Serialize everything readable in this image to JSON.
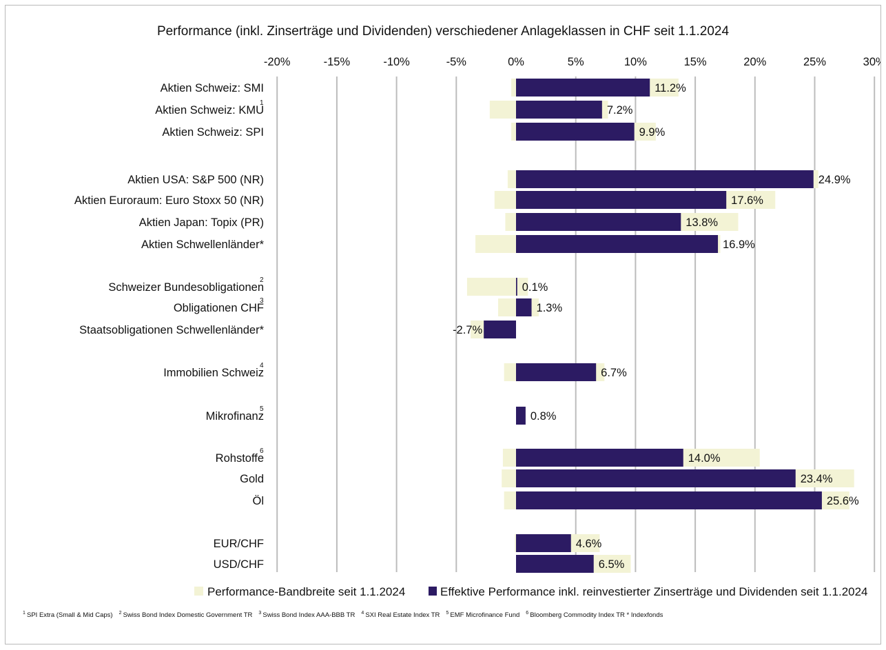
{
  "chart_data": {
    "type": "bar",
    "orientation": "horizontal",
    "title": "Performance (inkl. Zinserträge und Dividenden) verschiedener Anlageklassen in CHF seit 1.1.2024",
    "x_ticks": [
      "-20%",
      "-15%",
      "-10%",
      "-5%",
      "0%",
      "5%",
      "10%",
      "15%",
      "20%",
      "25%",
      "30%"
    ],
    "xlim": [
      -20,
      30
    ],
    "grid": true,
    "legend_position": "bottom",
    "colors": {
      "range": "#f3f3d5",
      "effective": "#2c1b63",
      "grid": "#bcbcbc"
    },
    "series": [
      {
        "name": "Performance-Bandbreite seit 1.1.2024",
        "kind": "range"
      },
      {
        "name": "Effektive Performance inkl. reinvestierter Zinserträge und Dividenden seit 1.1.2024",
        "kind": "value"
      }
    ],
    "categories": [
      {
        "label": "Aktien Schweiz: SMI",
        "sup": "",
        "value": 11.2,
        "label_text": "11.2%",
        "range": [
          -0.4,
          13.6
        ]
      },
      {
        "label": "Aktien Schweiz: KMU",
        "sup": "1",
        "value": 7.2,
        "label_text": "7.2%",
        "range": [
          -2.2,
          7.7
        ]
      },
      {
        "label": "Aktien Schweiz: SPI",
        "sup": "",
        "value": 9.9,
        "label_text": "9.9%",
        "range": [
          -0.4,
          11.7
        ]
      },
      {
        "label": "Aktien USA: S&P 500 (NR)",
        "sup": "",
        "value": 24.9,
        "label_text": "24.9%",
        "range": [
          -0.7,
          25.3
        ]
      },
      {
        "label": "Aktien Euroraum: Euro Stoxx 50 (NR)",
        "sup": "",
        "value": 17.6,
        "label_text": "17.6%",
        "range": [
          -1.8,
          21.7
        ]
      },
      {
        "label": "Aktien Japan: Topix (PR)",
        "sup": "",
        "value": 13.8,
        "label_text": "13.8%",
        "range": [
          -0.9,
          18.6
        ]
      },
      {
        "label": "Aktien Schwellenländer*",
        "sup": "",
        "value": 16.9,
        "label_text": "16.9%",
        "range": [
          -3.4,
          17.1
        ]
      },
      {
        "label": "Schweizer Bundesobligationen",
        "sup": "2",
        "value": 0.1,
        "label_text": "0.1%",
        "range": [
          -4.1,
          1.0
        ]
      },
      {
        "label": "Obligationen CHF",
        "sup": "3",
        "value": 1.3,
        "label_text": "1.3%",
        "range": [
          -1.5,
          1.9
        ]
      },
      {
        "label": "Staatsobligationen Schwellenländer*",
        "sup": "",
        "value": -2.7,
        "label_text": "-2.7%",
        "range": [
          -3.8,
          0.0
        ]
      },
      {
        "label": "Immobilien Schweiz",
        "sup": "4",
        "value": 6.7,
        "label_text": "6.7%",
        "range": [
          -1.0,
          7.4
        ]
      },
      {
        "label": "Mikrofinanz",
        "sup": "5",
        "value": 0.8,
        "label_text": "0.8%",
        "range": [
          0.0,
          0.8
        ]
      },
      {
        "label": "Rohstoffe",
        "sup": "6",
        "value": 14.0,
        "label_text": "14.0%",
        "range": [
          -1.1,
          20.4
        ]
      },
      {
        "label": "Gold",
        "sup": "",
        "value": 23.4,
        "label_text": "23.4%",
        "range": [
          -1.2,
          28.3
        ]
      },
      {
        "label": "Öl",
        "sup": "",
        "value": 25.6,
        "label_text": "25.6%",
        "range": [
          -1.0,
          27.9
        ]
      },
      {
        "label": "EUR/CHF",
        "sup": "",
        "value": 4.6,
        "label_text": "4.6%",
        "range": [
          -0.1,
          7.0
        ]
      },
      {
        "label": "USD/CHF",
        "sup": "",
        "value": 6.5,
        "label_text": "6.5%",
        "range": [
          0.0,
          9.6
        ]
      }
    ]
  },
  "footnotes": [
    {
      "sup": "1",
      "text": "SPI Extra (Small & Mid Caps)"
    },
    {
      "sup": "2",
      "text": "Swiss Bond Index Domestic Government TR"
    },
    {
      "sup": "3",
      "text": "Swiss Bond Index AAA-BBB TR"
    },
    {
      "sup": "4",
      "text": "SXI Real Estate Index TR"
    },
    {
      "sup": "5",
      "text": "EMF Microfinance Fund"
    },
    {
      "sup": "6",
      "text": "Bloomberg Commodity Index TR * Indexfonds"
    }
  ]
}
